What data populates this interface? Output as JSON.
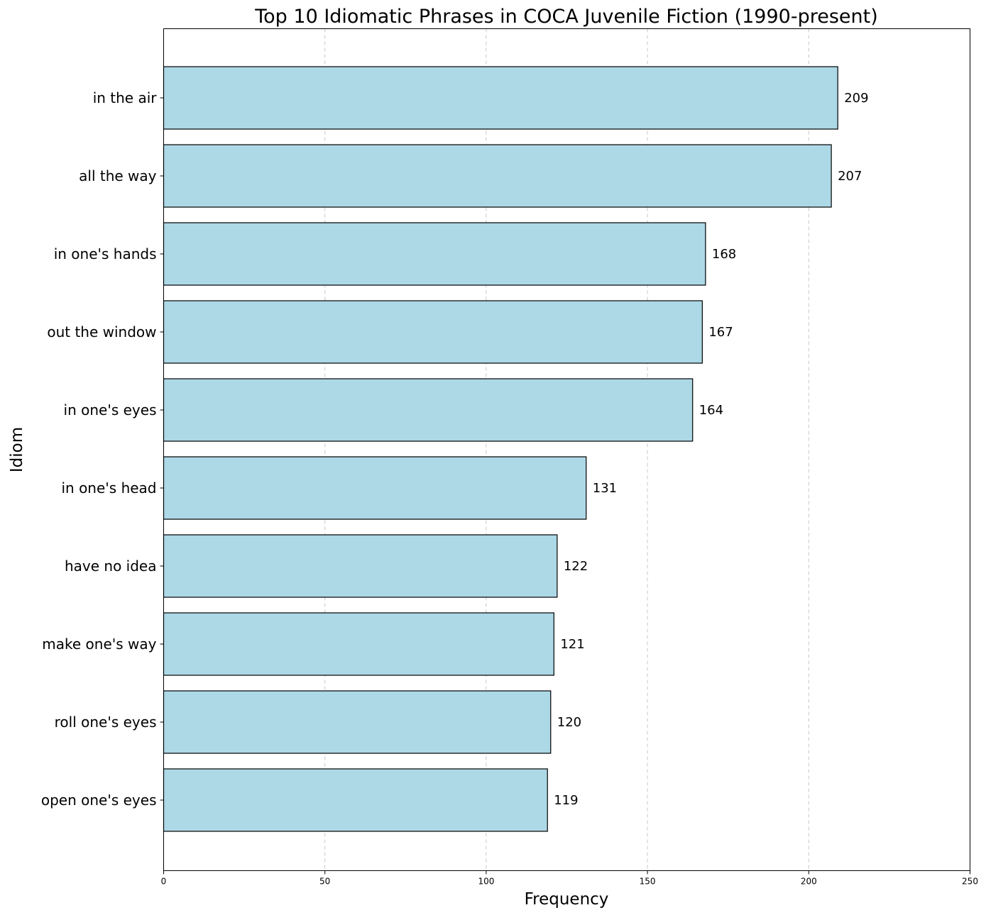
{
  "chart_data": {
    "type": "bar",
    "orientation": "horizontal",
    "title": "Top 10 Idiomatic Phrases in COCA Juvenile Fiction (1990-present)",
    "xlabel": "Frequency",
    "ylabel": "Idiom",
    "categories": [
      "in the air",
      "all the way",
      "in one's hands",
      "out the window",
      "in one's eyes",
      "in one's head",
      "have no idea",
      "make one's way",
      "roll one's eyes",
      "open one's eyes"
    ],
    "values": [
      209,
      207,
      168,
      167,
      164,
      131,
      122,
      121,
      120,
      119
    ],
    "xlim": [
      0,
      250
    ],
    "xticks": [
      0,
      50,
      100,
      150,
      200,
      250
    ],
    "grid": "x-dashed",
    "bar_color": "#add8e6",
    "edge_color": "#000000"
  }
}
